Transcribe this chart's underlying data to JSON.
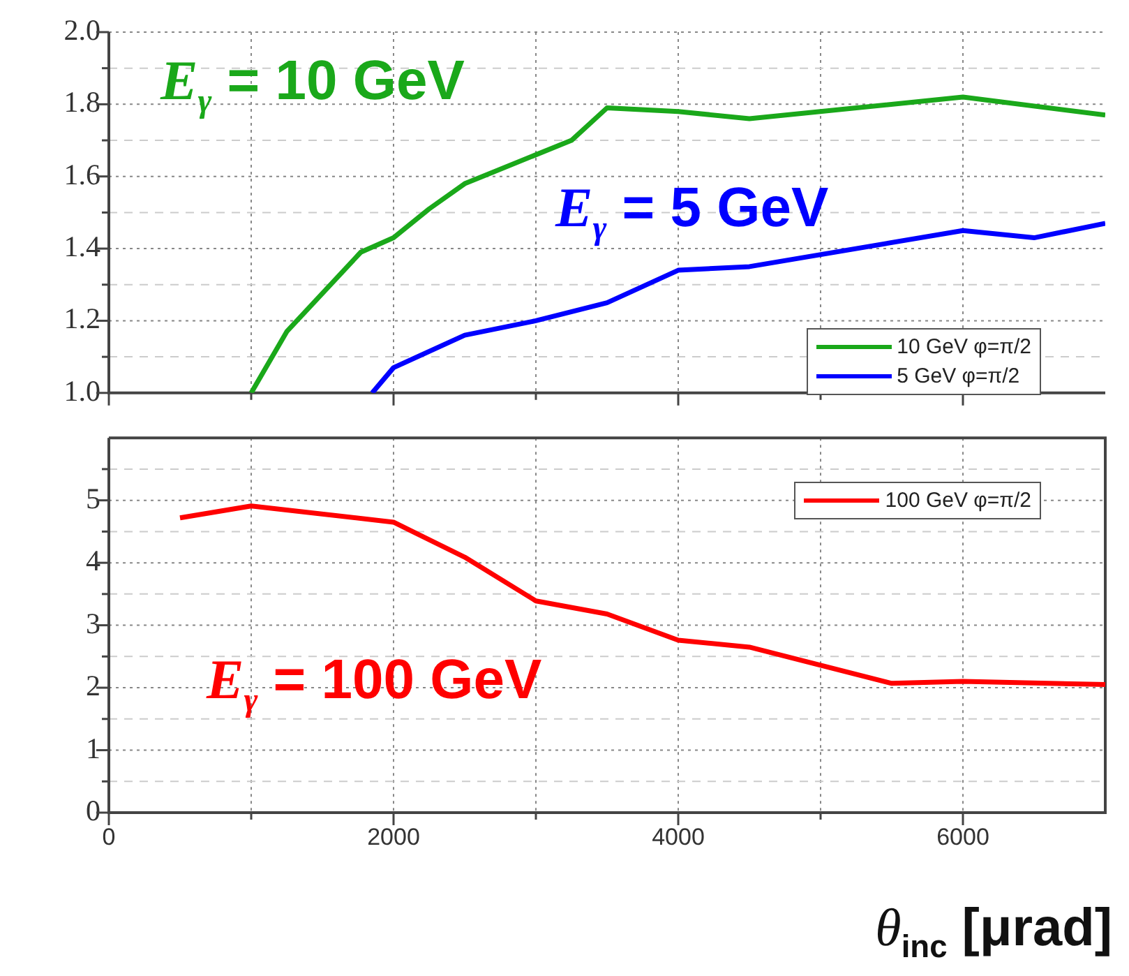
{
  "chart_data": [
    {
      "type": "line",
      "x": [
        1000,
        1250,
        1770,
        2000,
        2250,
        2500,
        3250,
        3500,
        4000,
        4500,
        6000,
        7000
      ],
      "series": [
        {
          "name": "10 GeV φ=π/2",
          "color": "#1aa81a",
          "values": [
            1.0,
            1.17,
            1.39,
            1.43,
            1.51,
            1.58,
            1.7,
            1.79,
            1.78,
            1.76,
            1.82,
            1.77
          ]
        },
        {
          "name": "5 GeV φ=π/2",
          "color": "#0000ff",
          "x": [
            1850,
            2000,
            2500,
            3000,
            3500,
            4000,
            4500,
            6000,
            6500,
            7000
          ],
          "values": [
            1.0,
            1.07,
            1.16,
            1.2,
            1.25,
            1.34,
            1.35,
            1.45,
            1.43,
            1.47
          ]
        }
      ],
      "xlim": [
        0,
        7000
      ],
      "xticks": [
        0,
        {
          "value": 1000,
          "label": null
        },
        2000,
        {
          "value": 3000,
          "label": null
        },
        4000,
        {
          "value": 5000,
          "label": null
        },
        6000
      ],
      "ylim": [
        1.0,
        2.0
      ],
      "yticks": [
        {
          "value": 1.0,
          "label": "1.0"
        },
        {
          "value": 1.1,
          "label": null
        },
        1.2,
        {
          "value": 1.3,
          "label": null
        },
        1.4,
        {
          "value": 1.5,
          "label": null
        },
        1.6,
        {
          "value": 1.7,
          "label": null
        },
        1.8,
        {
          "value": 1.9,
          "label": null
        },
        {
          "value": 2.0,
          "label": "2.0"
        }
      ],
      "tick_labels": "y",
      "grid": true,
      "legend": "bottom right",
      "marker": "none",
      "line_style": "solid",
      "annotations": [
        "E$_{γ}$ = 10 GeV",
        "E$_{γ}$ = 5 GeV"
      ]
    },
    {
      "type": "line",
      "x": [
        500,
        1000,
        2000,
        2500,
        3000,
        3500,
        4000,
        4500,
        5500,
        6000,
        7000
      ],
      "series": [
        {
          "name": "100 GeV φ=π/2",
          "color": "#ff0000",
          "values": [
            4.72,
            4.91,
            4.65,
            4.09,
            3.39,
            3.18,
            2.76,
            2.65,
            2.07,
            2.1,
            2.05
          ]
        }
      ],
      "xlim": [
        0,
        7000
      ],
      "xticks": [
        0,
        {
          "value": 1000,
          "label": null
        },
        2000,
        {
          "value": 3000,
          "label": null
        },
        4000,
        {
          "value": 5000,
          "label": null
        },
        6000
      ],
      "ylim": [
        0,
        6
      ],
      "yticks": [
        0,
        {
          "value": 0.5,
          "label": null
        },
        1,
        {
          "value": 1.5,
          "label": null
        },
        2,
        {
          "value": 2.5,
          "label": null
        },
        3,
        {
          "value": 3.5,
          "label": null
        },
        4,
        {
          "value": 4.5,
          "label": null
        },
        5,
        {
          "value": 5.5,
          "label": null
        }
      ],
      "xlabel": "θ$_{inc}$ [μrad]",
      "grid": true,
      "legend": "top right",
      "marker": "none",
      "line_style": "solid",
      "annotations": [
        "E$_{γ}$ = 100 GeV"
      ]
    }
  ]
}
